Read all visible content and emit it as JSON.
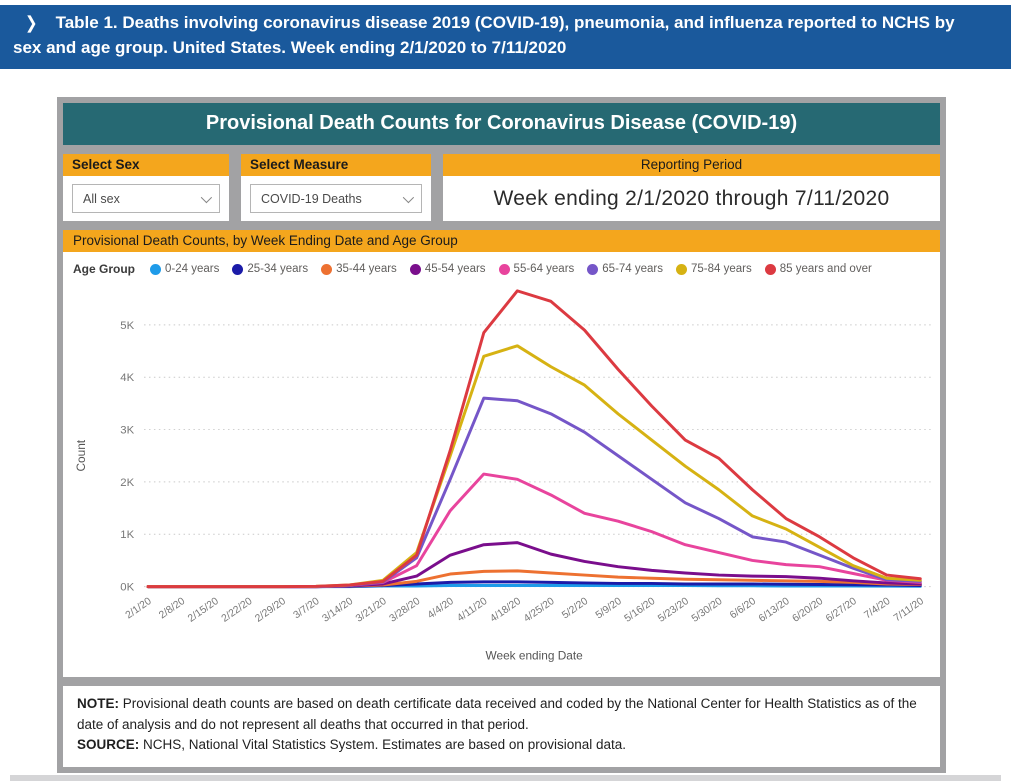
{
  "banner": {
    "chevron": "❯",
    "title": "Table 1. Deaths involving coronavirus disease 2019 (COVID-19), pneumonia, and influenza reported to NCHS by sex and age group. United States. Week ending 2/1/2020 to 7/11/2020"
  },
  "dashboard": {
    "title": "Provisional Death Counts for Coronavirus Disease (COVID-19)",
    "filters": {
      "sex": {
        "label": "Select Sex",
        "value": "All sex"
      },
      "measure": {
        "label": "Select Measure",
        "value": "COVID-19 Deaths"
      },
      "reporting_period": {
        "label": "Reporting Period",
        "value": "Week ending 2/1/2020 through 7/11/2020"
      }
    },
    "chart_title": "Provisional Death Counts, by Week Ending Date and Age Group",
    "legend_title": "Age Group",
    "note": {
      "note_label": "NOTE:",
      "note_text": "Provisional death counts are based on death certificate data received and coded by the National Center for Health Statistics as of the date of analysis and do not represent all deaths that occurred in that period.",
      "source_label": "SOURCE:",
      "source_text": "NCHS, National Vital Statistics System. Estimates are based on provisional data."
    },
    "colors": {
      "banner_blue": "#1A599C",
      "header_teal": "#266973",
      "accent_orange": "#F4A61D",
      "card_gray": "#A2A2A4"
    }
  },
  "chart_data": {
    "type": "line",
    "title": "Provisional Death Counts, by Week Ending Date and Age Group",
    "xlabel": "Week ending Date",
    "ylabel": "Count",
    "y_ticks": [
      "0K",
      "1K",
      "2K",
      "3K",
      "4K",
      "5K"
    ],
    "ylim_k": [
      0,
      5.8
    ],
    "grid": "horizontal-dotted",
    "legend_position": "top",
    "values_unit": "thousands (K)",
    "x": [
      "2/1/20",
      "2/8/20",
      "2/15/20",
      "2/22/20",
      "2/29/20",
      "3/7/20",
      "3/14/20",
      "3/21/20",
      "3/28/20",
      "4/4/20",
      "4/11/20",
      "4/18/20",
      "4/25/20",
      "5/2/20",
      "5/9/20",
      "5/16/20",
      "5/23/20",
      "5/30/20",
      "6/6/20",
      "6/13/20",
      "6/20/20",
      "6/27/20",
      "7/4/20",
      "7/11/20"
    ],
    "series": [
      {
        "name": "0-24 years",
        "color": "#1E9BE9",
        "values_k": [
          0,
          0,
          0,
          0,
          0,
          0,
          0,
          0.01,
          0.01,
          0.02,
          0.02,
          0.02,
          0.02,
          0.02,
          0.02,
          0.02,
          0.02,
          0.015,
          0.015,
          0.012,
          0.01,
          0.01,
          0.008,
          0.005
        ]
      },
      {
        "name": "25-34 years",
        "color": "#1B1BA8",
        "values_k": [
          0,
          0,
          0,
          0,
          0,
          0,
          0.005,
          0.02,
          0.05,
          0.08,
          0.09,
          0.09,
          0.08,
          0.07,
          0.06,
          0.06,
          0.05,
          0.05,
          0.05,
          0.045,
          0.04,
          0.035,
          0.03,
          0.02
        ]
      },
      {
        "name": "35-44 years",
        "color": "#ED7131",
        "values_k": [
          0,
          0,
          0,
          0,
          0,
          0,
          0.01,
          0.03,
          0.1,
          0.24,
          0.29,
          0.3,
          0.26,
          0.22,
          0.18,
          0.16,
          0.14,
          0.13,
          0.12,
          0.11,
          0.1,
          0.08,
          0.05,
          0.04
        ]
      },
      {
        "name": "45-54 years",
        "color": "#7A0E8C",
        "values_k": [
          0,
          0,
          0,
          0,
          0,
          0,
          0.01,
          0.05,
          0.2,
          0.6,
          0.8,
          0.84,
          0.62,
          0.48,
          0.38,
          0.31,
          0.26,
          0.22,
          0.2,
          0.19,
          0.16,
          0.11,
          0.07,
          0.05
        ]
      },
      {
        "name": "55-64 years",
        "color": "#E8449D",
        "values_k": [
          0,
          0,
          0,
          0,
          0,
          0,
          0.02,
          0.08,
          0.4,
          1.45,
          2.15,
          2.05,
          1.75,
          1.4,
          1.25,
          1.05,
          0.8,
          0.65,
          0.5,
          0.42,
          0.38,
          0.25,
          0.12,
          0.08
        ]
      },
      {
        "name": "65-74 years",
        "color": "#7556C8",
        "values_k": [
          0,
          0,
          0,
          0,
          0,
          0,
          0.02,
          0.09,
          0.55,
          2.05,
          3.6,
          3.55,
          3.3,
          2.95,
          2.5,
          2.05,
          1.6,
          1.3,
          0.95,
          0.85,
          0.6,
          0.35,
          0.13,
          0.1
        ]
      },
      {
        "name": "75-84 years",
        "color": "#D6B213",
        "values_k": [
          0,
          0,
          0,
          0,
          0,
          0.005,
          0.03,
          0.12,
          0.65,
          2.5,
          4.4,
          4.6,
          4.2,
          3.85,
          3.3,
          2.8,
          2.3,
          1.85,
          1.35,
          1.1,
          0.75,
          0.4,
          0.16,
          0.12
        ]
      },
      {
        "name": "85 years and over",
        "color": "#DC3A41",
        "values_k": [
          0,
          0,
          0,
          0,
          0,
          0.005,
          0.03,
          0.1,
          0.6,
          2.6,
          4.85,
          5.65,
          5.45,
          4.9,
          4.15,
          3.45,
          2.8,
          2.45,
          1.85,
          1.3,
          0.95,
          0.55,
          0.22,
          0.15
        ]
      }
    ]
  }
}
